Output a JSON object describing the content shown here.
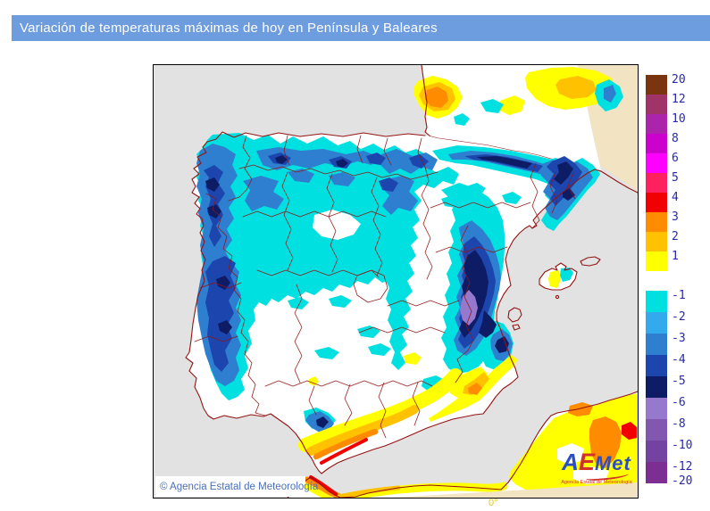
{
  "header": {
    "title": "Variación de temperaturas máximas de hoy en Península y Baleares",
    "bg_color": "#6D9CDF"
  },
  "map": {
    "copyright": "© Agencia Estatal de Meteorología",
    "lon_label": "0°",
    "sea_color": "#E2E2E2",
    "land_color": "#FFFFFF",
    "border_color": "#941414",
    "domain_edge_color": "#F2E4C2"
  },
  "logo": {
    "a": "A",
    "e": "E",
    "met": "Met",
    "tagline": "Agencia Estatal de Meteorología",
    "blue": "#2B4FC0",
    "red": "#D2302C"
  },
  "palette": {
    "yellow": "#FFFF00",
    "amber": "#FFC100",
    "orange": "#FF8C00",
    "red": "#F00000",
    "cyan": "#00E0E0",
    "blue_light": "#33AAEE",
    "blue_med": "#2E7FD0",
    "blue_deep": "#1C45AE",
    "navy": "#0E1C66",
    "purple_light": "#9678CC"
  },
  "legend": {
    "text_color": "#2828B0",
    "positive": [
      {
        "label": "20",
        "color": "#7B3410"
      },
      {
        "label": "12",
        "color": "#A03468"
      },
      {
        "label": "10",
        "color": "#AC23AC"
      },
      {
        "label": "8",
        "color": "#CC00CC"
      },
      {
        "label": "6",
        "color": "#FF00FF"
      },
      {
        "label": "5",
        "color": "#FF2060"
      },
      {
        "label": "4",
        "color": "#F00000"
      },
      {
        "label": "3",
        "color": "#FF8C00"
      },
      {
        "label": "2",
        "color": "#FFC100"
      },
      {
        "label": "1",
        "color": "#FFFF00"
      }
    ],
    "negative": [
      {
        "label": "-1",
        "color": "#00E0E0"
      },
      {
        "label": "-2",
        "color": "#33AAEE"
      },
      {
        "label": "-3",
        "color": "#2E7FD0"
      },
      {
        "label": "-4",
        "color": "#1C45AE"
      },
      {
        "label": "-5",
        "color": "#0E1C66"
      },
      {
        "label": "-6",
        "color": "#9678CC"
      },
      {
        "label": "-8",
        "color": "#8157B0"
      },
      {
        "label": "-10",
        "color": "#7443A2"
      },
      {
        "label": "-12",
        "color": "#7C2E92"
      }
    ],
    "bottom_label": "-20"
  }
}
